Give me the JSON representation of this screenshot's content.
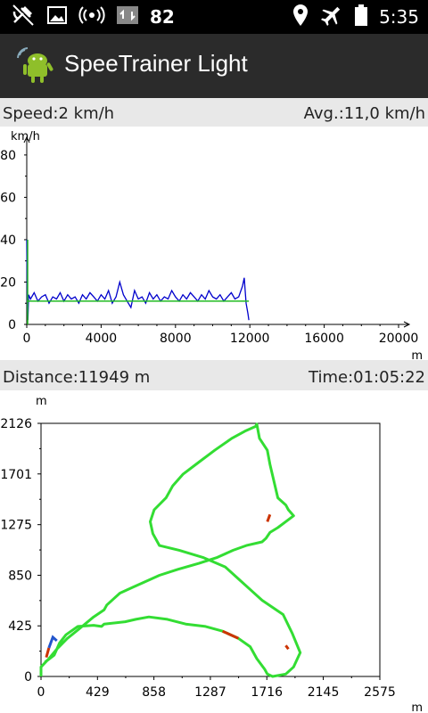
{
  "status_bar": {
    "notification_count": "82",
    "time": "5:35"
  },
  "app": {
    "title": "SpeeTrainer Light"
  },
  "speed_panel": {
    "speed_label": "Speed:2 km/h",
    "avg_label": "Avg.:11,0 km/h"
  },
  "track_panel": {
    "distance_label": "Distance:11949 m",
    "time_label": "Time:01:05:22"
  },
  "colors": {
    "speed_line": "#0000cc",
    "avg_line": "#22bb22",
    "track_main": "#33dd33",
    "track_slow": "#cc3300",
    "track_start": "#2255cc"
  },
  "chart_data": [
    {
      "type": "line",
      "title": "",
      "xlabel": "m",
      "ylabel": "km/h",
      "xlim": [
        0,
        20000
      ],
      "ylim": [
        0,
        85
      ],
      "x_ticks": [
        "0",
        "4000",
        "8000",
        "12000",
        "16000",
        "20000"
      ],
      "y_ticks": [
        "0",
        "20",
        "40",
        "60",
        "80"
      ],
      "series": [
        {
          "x": [
            0,
            30,
            60,
            100,
            200,
            400,
            600,
            800,
            1000,
            1200,
            1400,
            1600,
            1800,
            2000,
            2200,
            2400,
            2600,
            2800,
            3000,
            3200,
            3400,
            3600,
            3800,
            4000,
            4200,
            4400,
            4600,
            4800,
            5000,
            5200,
            5400,
            5600,
            5800,
            6000,
            6200,
            6400,
            6600,
            6800,
            7000,
            7200,
            7400,
            7600,
            7800,
            8000,
            8200,
            8400,
            8600,
            8800,
            9000,
            9200,
            9400,
            9600,
            9800,
            10000,
            10200,
            10400,
            10600,
            10800,
            11000,
            11200,
            11400,
            11600,
            11700,
            11800,
            11900,
            11949
          ],
          "y": [
            40,
            8,
            2,
            14,
            12,
            15,
            11,
            13,
            14,
            10,
            13,
            12,
            15,
            11,
            14,
            12,
            13,
            10,
            14,
            12,
            15,
            13,
            11,
            14,
            12,
            16,
            10,
            13,
            20,
            14,
            11,
            8,
            16,
            12,
            13,
            10,
            15,
            12,
            14,
            11,
            13,
            12,
            16,
            13,
            11,
            14,
            12,
            15,
            13,
            11,
            14,
            12,
            16,
            13,
            12,
            14,
            11,
            13,
            15,
            12,
            13,
            18,
            22,
            10,
            5,
            2
          ]
        },
        {
          "x": [
            0,
            11949
          ],
          "y": [
            11,
            11
          ]
        }
      ]
    },
    {
      "type": "scatter",
      "title": "",
      "xlabel": "m",
      "ylabel": "m",
      "xlim": [
        0,
        2575
      ],
      "ylim": [
        0,
        2126
      ],
      "x_ticks": [
        "0",
        "429",
        "858",
        "1287",
        "1716",
        "2145",
        "2575"
      ],
      "y_ticks": [
        "0",
        "425",
        "850",
        "1275",
        "1701",
        "2126"
      ],
      "track": {
        "x": [
          30,
          100,
          140,
          190,
          280,
          400,
          460,
          480,
          640,
          720,
          820,
          960,
          1100,
          1250,
          1380,
          1500,
          1590,
          1640,
          1700,
          1720,
          1760,
          1860,
          1920,
          1970,
          1910,
          1840,
          1680,
          1600,
          1500,
          1400,
          1230,
          1050,
          900,
          850,
          830,
          860,
          950,
          1000,
          1080,
          1200,
          1320,
          1450,
          1550,
          1630,
          1640,
          1660,
          1720,
          1740,
          1800,
          1860,
          1880,
          1920,
          1860,
          1800,
          1740,
          1710,
          1680,
          1560,
          1460,
          1340,
          1200,
          1040,
          900,
          800,
          700,
          600,
          500,
          480,
          400,
          290,
          200,
          120,
          60,
          0,
          0
        ],
        "y": [
          120,
          180,
          280,
          350,
          420,
          430,
          420,
          440,
          460,
          480,
          500,
          480,
          440,
          420,
          380,
          320,
          250,
          150,
          60,
          20,
          0,
          20,
          80,
          200,
          360,
          520,
          640,
          720,
          820,
          920,
          1000,
          1060,
          1100,
          1200,
          1300,
          1400,
          1500,
          1600,
          1700,
          1800,
          1900,
          2000,
          2060,
          2100,
          2120,
          2000,
          1900,
          1780,
          1500,
          1440,
          1400,
          1350,
          1300,
          1250,
          1210,
          1160,
          1130,
          1100,
          1060,
          1000,
          950,
          900,
          850,
          800,
          750,
          700,
          600,
          560,
          500,
          400,
          320,
          230,
          150,
          80,
          0
        ]
      }
    }
  ]
}
